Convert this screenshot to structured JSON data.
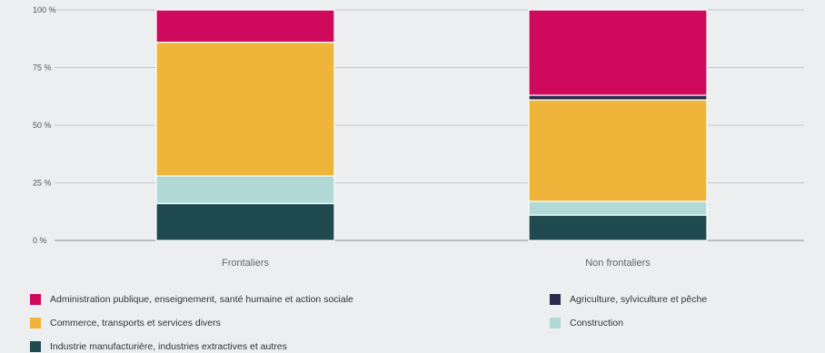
{
  "chart_data": {
    "type": "bar",
    "stacked": true,
    "categories": [
      "Frontaliers",
      "Non frontaliers"
    ],
    "yticks": [
      "0 %",
      "25 %",
      "50 %",
      "75 %",
      "100 %"
    ],
    "ylim": [
      0,
      100
    ],
    "grid": true,
    "legend_position": "bottom",
    "series": [
      {
        "name": "Industrie manufacturière, industries extractives et autres",
        "color": "#1e4a50",
        "values": [
          16,
          11
        ]
      },
      {
        "name": "Construction",
        "color": "#b1dad7",
        "values": [
          12,
          6
        ]
      },
      {
        "name": "Commerce, transports et services divers",
        "color": "#efb53a",
        "values": [
          58,
          44
        ]
      },
      {
        "name": "Agriculture, sylviculture et pêche",
        "color": "#2b2a4c",
        "values": [
          0,
          2
        ]
      },
      {
        "name": "Administration publique, enseignement, santé humaine et action sociale",
        "color": "#cf0a5d",
        "values": [
          14,
          37
        ]
      }
    ]
  }
}
